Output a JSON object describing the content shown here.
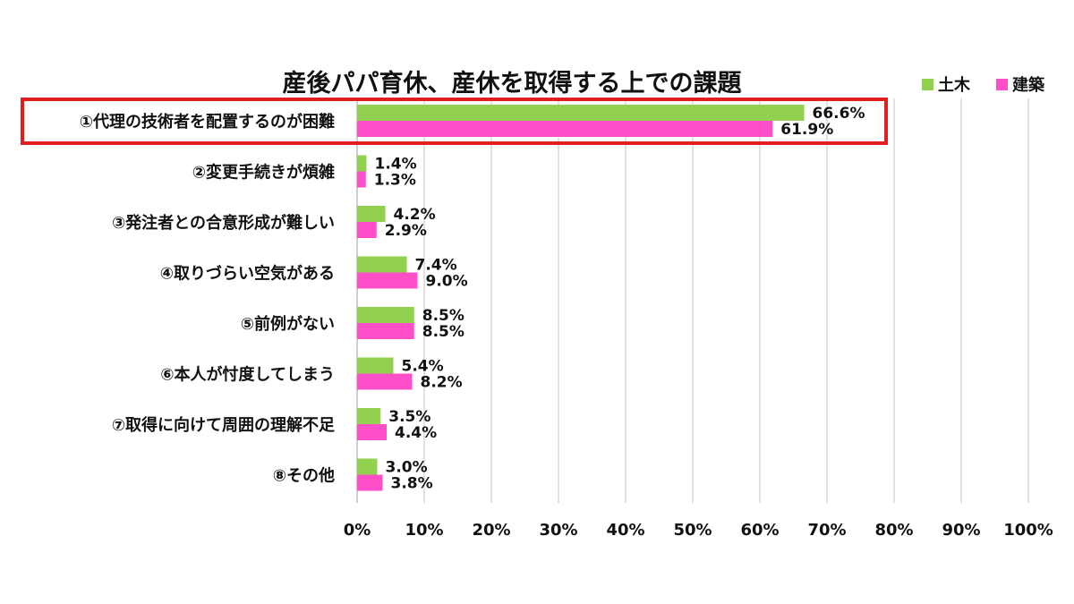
{
  "chart_data": {
    "type": "bar",
    "orientation": "horizontal",
    "title": "産後パパ育休、産休を取得する上での課題",
    "categories": [
      "①代理の技術者を配置するのが困難",
      "②変更手続きが煩雑",
      "③発注者との合意形成が難しい",
      "④取りづらい空気がある",
      "⑤前例がない",
      "⑥本人が忖度してしまう",
      "⑦取得に向けて周囲の理解不足",
      "⑧その他"
    ],
    "series": [
      {
        "name": "土木",
        "color": "#92d050",
        "values": [
          66.6,
          1.4,
          4.2,
          7.4,
          8.5,
          5.4,
          3.5,
          3.0
        ],
        "labels": [
          "66.6%",
          "1.4%",
          "4.2%",
          "7.4%",
          "8.5%",
          "5.4%",
          "3.5%",
          "3.0%"
        ]
      },
      {
        "name": "建築",
        "color": "#ff4fc8",
        "values": [
          61.9,
          1.3,
          2.9,
          9.0,
          8.5,
          8.2,
          4.4,
          3.8
        ],
        "labels": [
          "61.9%",
          "1.3%",
          "2.9%",
          "9.0%",
          "8.5%",
          "8.2%",
          "4.4%",
          "3.8%"
        ]
      }
    ],
    "xlim": [
      0,
      100
    ],
    "xticks": [
      "0%",
      "10%",
      "20%",
      "30%",
      "40%",
      "50%",
      "60%",
      "70%",
      "80%",
      "90%",
      "100%"
    ],
    "xlabel": "",
    "ylabel": "",
    "grid": true,
    "legend": "top-right",
    "highlight_category_index": 0,
    "highlight_color": "#e02020"
  }
}
